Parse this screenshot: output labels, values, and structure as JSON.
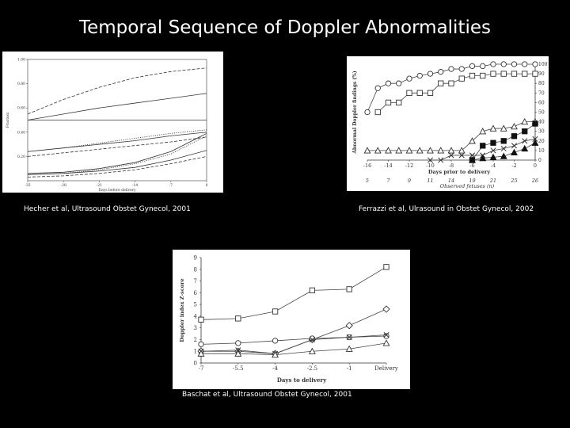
{
  "title": "Temporal Sequence of Doppler Abnormalities",
  "captions": {
    "hecher": "Hecher et al, Ultrasound Obstet Gynecol, 2001",
    "ferrazzi": "Ferrazzi et al, Ulrasound in Obstet Gynecol, 2002",
    "baschat": "Baschat et al, Ultrasound Obstet Gynecol, 2001"
  },
  "chart_data": [
    {
      "type": "line",
      "xlabel": "Days before delivery",
      "ylabel": "Fraction",
      "x_ticks": [
        "-35",
        "-28",
        "-21",
        "-14",
        "-7",
        "0"
      ],
      "y_ticks": [
        "0.20",
        "0.40",
        "0.60",
        "0.80",
        "1.00"
      ],
      "xlim": [
        -35,
        0
      ],
      "ylim": [
        0,
        1
      ],
      "grid": false,
      "series": [
        {
          "style": "dash",
          "x": [
            -35,
            -28,
            -21,
            -14,
            -7,
            0
          ],
          "y": [
            0.55,
            0.67,
            0.77,
            0.85,
            0.9,
            0.93
          ]
        },
        {
          "style": "solid",
          "x": [
            -35,
            -28,
            -21,
            -14,
            -7,
            0
          ],
          "y": [
            0.5,
            0.55,
            0.6,
            0.64,
            0.68,
            0.72
          ]
        },
        {
          "style": "solid",
          "x": [
            -35,
            0
          ],
          "y": [
            0.5,
            0.5
          ]
        },
        {
          "style": "dot",
          "x": [
            -35,
            -28,
            -21,
            -14,
            -7,
            0
          ],
          "y": [
            0.24,
            0.27,
            0.31,
            0.35,
            0.39,
            0.42
          ]
        },
        {
          "style": "solid",
          "x": [
            -35,
            -28,
            -21,
            -14,
            -7,
            0
          ],
          "y": [
            0.24,
            0.27,
            0.3,
            0.33,
            0.37,
            0.4
          ]
        },
        {
          "style": "dash",
          "x": [
            -35,
            -28,
            -21,
            -14,
            -7,
            0
          ],
          "y": [
            0.2,
            0.23,
            0.26,
            0.29,
            0.32,
            0.36
          ]
        },
        {
          "style": "solid",
          "x": [
            -35,
            -28,
            -21,
            -14,
            -7,
            0
          ],
          "y": [
            0.06,
            0.07,
            0.1,
            0.15,
            0.24,
            0.39
          ]
        },
        {
          "style": "dot",
          "x": [
            -35,
            -28,
            -21,
            -14,
            -7,
            0
          ],
          "y": [
            0.05,
            0.06,
            0.09,
            0.14,
            0.22,
            0.37
          ]
        },
        {
          "style": "solid",
          "x": [
            -35,
            -28,
            -21,
            -14,
            -7,
            0
          ],
          "y": [
            0.05,
            0.06,
            0.08,
            0.11,
            0.17,
            0.25
          ]
        },
        {
          "style": "dash",
          "x": [
            -35,
            -28,
            -21,
            -14,
            -7,
            0
          ],
          "y": [
            0.03,
            0.04,
            0.06,
            0.09,
            0.14,
            0.2
          ]
        }
      ]
    },
    {
      "type": "line",
      "xlabel": "Days prior to delivery",
      "ylabel": "Abnormal Doppler findings (%)",
      "x2label": "Observed fetuses (n)",
      "x_ticks": [
        "-16",
        "-14",
        "-12",
        "-10",
        "-8",
        "-6",
        "-4",
        "-2",
        "0"
      ],
      "y_ticks": [
        "0",
        "10",
        "20",
        "30",
        "40",
        "50",
        "60",
        "70",
        "80",
        "90",
        "100"
      ],
      "x2_ticks": [
        "5",
        "7",
        "9",
        "11",
        "14",
        "19",
        "21",
        "25",
        "26"
      ],
      "xlim": [
        -16,
        0
      ],
      "ylim": [
        0,
        100
      ],
      "grid": false,
      "series": [
        {
          "marker": "circle-open",
          "x": [
            -16,
            -15,
            -14,
            -13,
            -12,
            -11,
            -10,
            -9,
            -8,
            -7,
            -6,
            -5,
            -4,
            -3,
            -2,
            -1,
            0
          ],
          "y": [
            50,
            75,
            80,
            80,
            85,
            88,
            90,
            92,
            95,
            95,
            98,
            98,
            100,
            100,
            100,
            100,
            100
          ]
        },
        {
          "marker": "square-open",
          "x": [
            -15,
            -14,
            -13,
            -12,
            -11,
            -10,
            -9,
            -8,
            -7,
            -6,
            -5,
            -4,
            -3,
            -2,
            -1,
            0
          ],
          "y": [
            50,
            60,
            60,
            70,
            70,
            70,
            80,
            80,
            85,
            88,
            88,
            90,
            90,
            90,
            90,
            90
          ]
        },
        {
          "marker": "triangle-open",
          "x": [
            -16,
            -15,
            -14,
            -13,
            -12,
            -11,
            -10,
            -9,
            -8,
            -7,
            -6,
            -5,
            -4,
            -3,
            -2,
            -1,
            0
          ],
          "y": [
            10,
            10,
            10,
            10,
            10,
            10,
            10,
            10,
            10,
            10,
            20,
            30,
            33,
            33,
            35,
            40,
            40
          ]
        },
        {
          "marker": "cross",
          "x": [
            -10,
            -9,
            -8,
            -7,
            -6,
            -5,
            -4,
            -3,
            -2,
            -1,
            0
          ],
          "y": [
            0,
            0,
            5,
            5,
            5,
            5,
            10,
            12,
            15,
            20,
            22
          ]
        },
        {
          "marker": "square-filled",
          "x": [
            -6,
            -5,
            -4,
            -3,
            -2,
            -1,
            0
          ],
          "y": [
            0,
            15,
            18,
            20,
            25,
            30,
            38
          ]
        },
        {
          "marker": "triangle-filled",
          "x": [
            -6,
            -5,
            -4,
            -3,
            -2,
            -1,
            0
          ],
          "y": [
            0,
            2,
            3,
            4,
            8,
            12,
            18
          ]
        }
      ]
    },
    {
      "type": "line",
      "xlabel": "Days to delivery",
      "ylabel": "Doppler index Z-score",
      "categories": [
        "-7",
        "-5.5",
        "-4",
        "-2.5",
        "-1",
        "Delivery"
      ],
      "y_ticks": [
        "0",
        "1",
        "2",
        "3",
        "4",
        "5",
        "6",
        "7",
        "8",
        "9"
      ],
      "ylim": [
        0,
        9
      ],
      "grid": false,
      "series": [
        {
          "marker": "square-open",
          "values": [
            3.7,
            3.8,
            4.4,
            6.2,
            6.3,
            8.2
          ]
        },
        {
          "marker": "diamond-open",
          "values": [
            1.0,
            1.0,
            0.8,
            2.0,
            3.2,
            4.6
          ]
        },
        {
          "marker": "circle-open",
          "values": [
            1.6,
            1.7,
            1.9,
            2.1,
            2.2,
            2.3
          ]
        },
        {
          "marker": "cross",
          "values": [
            1.0,
            1.1,
            0.8,
            2.0,
            2.2,
            2.4
          ]
        },
        {
          "marker": "triangle-open",
          "values": [
            0.8,
            0.8,
            0.7,
            1.0,
            1.2,
            1.7
          ]
        }
      ]
    }
  ]
}
